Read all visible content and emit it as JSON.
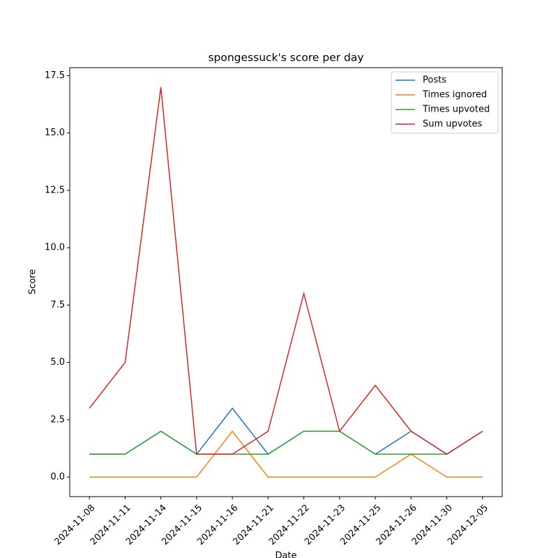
{
  "chart_data": {
    "type": "line",
    "title": "spongessuck's score per day",
    "xlabel": "Date",
    "ylabel": "Score",
    "categories": [
      "2024-11-08",
      "2024-11-11",
      "2024-11-14",
      "2024-11-15",
      "2024-11-16",
      "2024-11-21",
      "2024-11-22",
      "2024-11-23",
      "2024-11-25",
      "2024-11-26",
      "2024-11-30",
      "2024-12-05"
    ],
    "series": [
      {
        "name": "Posts",
        "color": "#1f77b4",
        "values": [
          1,
          1,
          2,
          1,
          3,
          1,
          2,
          2,
          1,
          2,
          1,
          2
        ]
      },
      {
        "name": "Times ignored",
        "color": "#ff7f0e",
        "values": [
          0,
          0,
          0,
          0,
          2,
          0,
          0,
          0,
          0,
          1,
          0,
          0
        ]
      },
      {
        "name": "Times upvoted",
        "color": "#2ca02c",
        "values": [
          1,
          1,
          2,
          1,
          1,
          1,
          2,
          2,
          1,
          1,
          1,
          2
        ]
      },
      {
        "name": "Sum upvotes",
        "color": "#d62728",
        "values": [
          3,
          5,
          17,
          1,
          1,
          2,
          8,
          2,
          4,
          2,
          1,
          2
        ]
      }
    ],
    "ylim": [
      -0.85,
      17.85
    ],
    "yticks": [
      {
        "value": 0,
        "label": "0.0"
      },
      {
        "value": 2.5,
        "label": "2.5"
      },
      {
        "value": 5,
        "label": "5.0"
      },
      {
        "value": 7.5,
        "label": "7.5"
      },
      {
        "value": 10,
        "label": "10.0"
      },
      {
        "value": 12.5,
        "label": "12.5"
      },
      {
        "value": 15,
        "label": "15.0"
      },
      {
        "value": 17.5,
        "label": "17.5"
      }
    ],
    "grid": false,
    "legend": "upper right"
  }
}
